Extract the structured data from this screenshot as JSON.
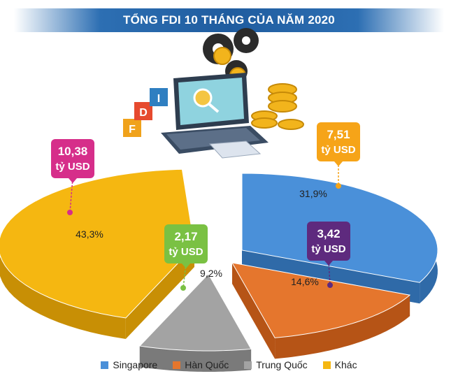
{
  "title": "TỔNG FDI 10 THÁNG CỦA NĂM 2020",
  "chart_data": {
    "type": "pie",
    "title": "TỔNG FDI 10 THÁNG CỦA NĂM 2020",
    "series": [
      {
        "name": "Singapore",
        "percent": 31.9,
        "percent_label": "31,9%",
        "value_label": "7,51\ntỷ USD",
        "value": 7.51,
        "color": "#4a90d9",
        "side": "#2f6aa8"
      },
      {
        "name": "Hàn Quốc",
        "percent": 14.6,
        "percent_label": "14,6%",
        "value_label": "3,42\ntỷ USD",
        "value": 3.42,
        "color": "#e5762d",
        "side": "#b65416"
      },
      {
        "name": "Trung Quốc",
        "percent": 9.2,
        "percent_label": "9,2%",
        "value_label": "2,17\ntỷ USD",
        "value": 2.17,
        "color": "#a3a3a3",
        "side": "#7a7a7a"
      },
      {
        "name": "Khác",
        "percent": 43.3,
        "percent_label": "43,3%",
        "value_label": "10,38\ntỷ USD",
        "value": 10.38,
        "color": "#f5b711",
        "side": "#c88f05"
      }
    ],
    "legend_position": "bottom",
    "label_box_colors": [
      "#f6a418",
      "#5e2a7e",
      "#7ac143",
      "#d62e8a"
    ],
    "value_unit": "tỷ USD"
  },
  "illustration": {
    "fdi_letters": [
      "F",
      "D",
      "I"
    ]
  }
}
